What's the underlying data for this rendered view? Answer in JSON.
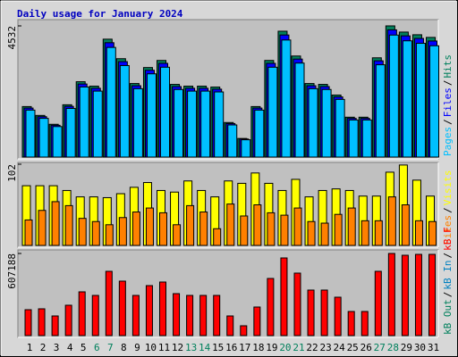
{
  "title": "Daily usage for January 2024",
  "legend_separator": "/",
  "highlight_categories": [
    "6",
    "7",
    "13",
    "14",
    "20",
    "21",
    "27",
    "28"
  ],
  "highlight_color": "#00805c",
  "label_color": "#000000",
  "chart_data": [
    {
      "type": "bar",
      "ylim": [
        0,
        4532
      ],
      "yticks": [
        4532
      ],
      "series": [
        {
          "name": "Hits",
          "color": "#00805c",
          "values": [
            1745,
            1439,
            1133,
            1807,
            2603,
            2450,
            4073,
            3399,
            2541,
            3093,
            3338,
            2511,
            2450,
            2450,
            2419,
            1194,
            643,
            1745,
            3338,
            4348,
            3491,
            2541,
            2511,
            2143,
            1378,
            1378,
            3429,
            4532,
            4318,
            4226,
            4134
          ]
        },
        {
          "name": "Files",
          "color": "#0000ff",
          "values": [
            1693,
            1396,
            1099,
            1753,
            2525,
            2377,
            3951,
            3297,
            2465,
            3000,
            3238,
            2436,
            2377,
            2377,
            2346,
            1158,
            624,
            1693,
            3238,
            4218,
            3386,
            2465,
            2436,
            2079,
            1337,
            1337,
            3326,
            4396,
            4188,
            4099,
            4010
          ]
        },
        {
          "name": "Pages",
          "color": "#00c0ff",
          "values": [
            1623,
            1338,
            1054,
            1681,
            2421,
            2279,
            3788,
            3161,
            2363,
            2876,
            3104,
            2335,
            2279,
            2279,
            2250,
            1110,
            598,
            1623,
            3104,
            4044,
            3247,
            2363,
            2335,
            1993,
            1282,
            1282,
            3189,
            4215,
            4016,
            3930,
            3845
          ]
        }
      ]
    },
    {
      "type": "bar",
      "ylim": [
        0,
        102
      ],
      "yticks": [
        102
      ],
      "series": [
        {
          "name": "Visits",
          "color": "#ffff00",
          "values": [
            75,
            75,
            75,
            69,
            61,
            61,
            60,
            65,
            73,
            79,
            69,
            67,
            81,
            69,
            61,
            81,
            78,
            91,
            78,
            69,
            83,
            61,
            69,
            71,
            69,
            62,
            62,
            92,
            101,
            82,
            62
          ]
        },
        {
          "name": "Sites",
          "color": "#ff8000",
          "values": [
            32,
            44,
            55,
            50,
            34,
            30,
            26,
            35,
            42,
            47,
            41,
            26,
            50,
            42,
            21,
            52,
            37,
            51,
            41,
            38,
            47,
            30,
            28,
            39,
            47,
            31,
            31,
            61,
            51,
            31,
            30
          ]
        }
      ]
    },
    {
      "type": "bar",
      "ylim": [
        0,
        607188
      ],
      "yticks": [
        607188
      ],
      "categories": [
        "1",
        "2",
        "3",
        "4",
        "5",
        "6",
        "7",
        "8",
        "9",
        "10",
        "11",
        "12",
        "13",
        "14",
        "15",
        "16",
        "17",
        "18",
        "19",
        "20",
        "21",
        "22",
        "23",
        "24",
        "25",
        "26",
        "27",
        "28",
        "29",
        "30",
        "31"
      ],
      "series": [
        {
          "name": "kB F",
          "color": "#ff0000",
          "values": [
            191400,
            198000,
            145200,
            224400,
            323400,
            297000,
            475200,
            402600,
            297000,
            369600,
            396000,
            310200,
            297000,
            297000,
            297000,
            145200,
            72600,
            211200,
            422400,
            574200,
            462000,
            336600,
            336600,
            283800,
            178200,
            178200,
            475200,
            607188,
            594000,
            600600,
            600600
          ]
        },
        {
          "name": "kB In",
          "color": "#0080c0"
        },
        {
          "name": "kB Out",
          "color": "#00805c"
        }
      ]
    }
  ]
}
